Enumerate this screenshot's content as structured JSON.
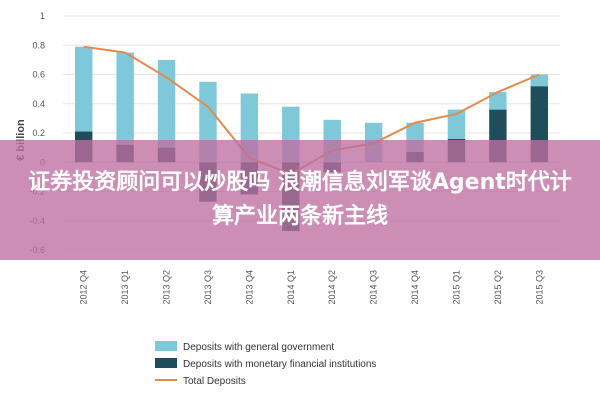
{
  "chart_data": {
    "type": "bar",
    "ylabel": "€ billion",
    "ylim": [
      -0.6,
      1.0
    ],
    "yticks": [
      "1",
      "0.8",
      "0.6",
      "0.4",
      "0.2",
      "0",
      "-0.2",
      "-0.4",
      "-0.6"
    ],
    "categories": [
      "2012 Q4",
      "2013 Q1",
      "2013 Q2",
      "2013 Q3",
      "2013 Q4",
      "2014 Q1",
      "2014 Q2",
      "2014 Q3",
      "2014 Q4",
      "2015 Q1",
      "2015 Q2",
      "2015 Q3"
    ],
    "series": [
      {
        "name": "Deposits with general government",
        "type": "bar",
        "color": "#7ec8da",
        "values": [
          0.58,
          0.63,
          0.6,
          0.55,
          0.47,
          0.38,
          0.29,
          0.27,
          0.2,
          0.2,
          0.12,
          0.08
        ]
      },
      {
        "name": "Deposits with monetary financial institutions",
        "type": "bar",
        "color": "#1e4d5b",
        "values": [
          0.21,
          0.12,
          0.1,
          -0.27,
          -0.22,
          -0.47,
          -0.07,
          0.0,
          0.07,
          0.16,
          0.36,
          0.52
        ]
      },
      {
        "name": "Total Deposits",
        "type": "line",
        "color": "#e58a4a",
        "values": [
          0.79,
          0.75,
          0.58,
          0.38,
          0.03,
          -0.08,
          0.08,
          0.13,
          0.27,
          0.33,
          0.48,
          0.6
        ]
      }
    ]
  },
  "overlay": {
    "text": "证券投资顾问可以炒股吗 浪潮信息刘军谈Agent时代计算产业两条新主线"
  }
}
